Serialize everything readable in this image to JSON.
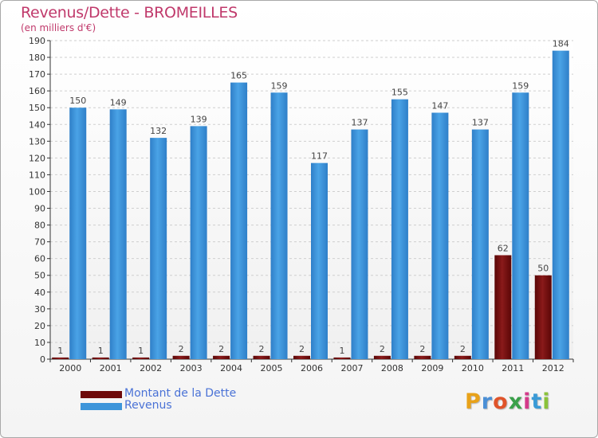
{
  "title": "Revenus/Dette - BROMEILLES",
  "subtitle": "(en milliers d'€)",
  "logo_text": "Proxiti",
  "colors": {
    "debt": "#6e0a0a",
    "revenue": "#3d95da",
    "title": "#c0396b",
    "legend_text": "#4a72d6",
    "grid": "#cfcfcf"
  },
  "chart_data": {
    "type": "bar",
    "categories": [
      "2000",
      "2001",
      "2002",
      "2003",
      "2004",
      "2005",
      "2006",
      "2007",
      "2008",
      "2009",
      "2010",
      "2011",
      "2012"
    ],
    "series": [
      {
        "name": "Montant de la Dette",
        "values": [
          1,
          1,
          1,
          2,
          2,
          2,
          2,
          1,
          2,
          2,
          2,
          62,
          50
        ],
        "color": "#6e0a0a"
      },
      {
        "name": "Revenus",
        "values": [
          150,
          149,
          132,
          139,
          165,
          159,
          117,
          137,
          155,
          147,
          137,
          159,
          184
        ],
        "color": "#3d95da"
      }
    ],
    "ylim": [
      0,
      190
    ],
    "yticks": [
      0,
      10,
      20,
      30,
      40,
      50,
      60,
      70,
      80,
      90,
      100,
      110,
      120,
      130,
      140,
      150,
      160,
      170,
      180,
      190
    ],
    "grid": true,
    "legend_position": "bottom-left"
  }
}
